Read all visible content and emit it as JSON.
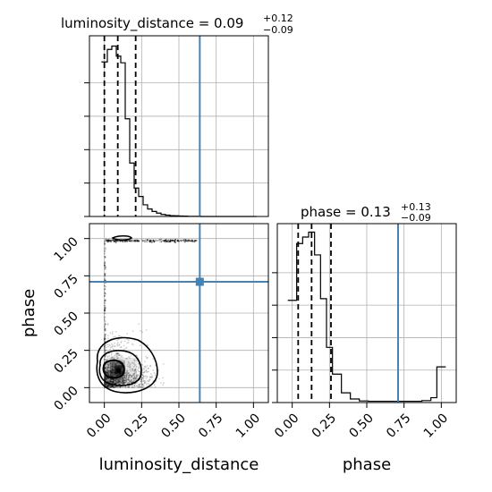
{
  "figure": {
    "x_axis_label": "luminosity_distance",
    "y_axis_label": "phase",
    "phase_axis_label": "phase"
  },
  "titles": {
    "lum": {
      "main": "luminosity_distance = 0.09",
      "sup": "+0.12",
      "sub": "−0.09"
    },
    "phase": {
      "main": "phase = 0.13",
      "sup": "+0.13",
      "sub": "−0.09"
    }
  },
  "tick_labels": {
    "x": [
      "0.00",
      "0.25",
      "0.50",
      "0.75",
      "1.00"
    ],
    "y": [
      "0.00",
      "0.25",
      "0.50",
      "0.75",
      "1.00"
    ]
  },
  "colors": {
    "truth": "#4682b4",
    "grid": "#b0b0b0",
    "hist": "#000000"
  },
  "chart_data": [
    {
      "type": "histogram",
      "panel": "luminosity_distance marginal",
      "bin_edges": [
        -0.02,
        0.02,
        0.05,
        0.08,
        0.11,
        0.14,
        0.17,
        0.2,
        0.23,
        0.26,
        0.29,
        0.32,
        0.35,
        0.38,
        0.41,
        0.44,
        0.47,
        0.5,
        0.53,
        0.56,
        0.59,
        0.62,
        0.65,
        0.68,
        0.71,
        0.74,
        0.77,
        0.8,
        0.83,
        0.86,
        0.89,
        0.92,
        0.95,
        0.98,
        1.02
      ],
      "counts": [
        925,
        1000,
        1020,
        960,
        920,
        585,
        320,
        170,
        120,
        70,
        45,
        30,
        20,
        12,
        8,
        5,
        4,
        3,
        2,
        1,
        1,
        1,
        0,
        0,
        0,
        0,
        0,
        0,
        0,
        0,
        0,
        0,
        0,
        0
      ],
      "quantiles": [
        0.0,
        0.09,
        0.21
      ],
      "truth": 0.64,
      "xlim": [
        -0.1,
        1.1
      ]
    },
    {
      "type": "histogram",
      "panel": "phase marginal",
      "bin_edges": [
        -0.03,
        0.03,
        0.07,
        0.11,
        0.15,
        0.19,
        0.23,
        0.27,
        0.33,
        0.39,
        0.45,
        0.51,
        0.57,
        0.63,
        0.69,
        0.75,
        0.81,
        0.87,
        0.93,
        0.97,
        1.03
      ],
      "counts": [
        630,
        980,
        1020,
        1050,
        910,
        640,
        340,
        175,
        60,
        22,
        10,
        8,
        8,
        8,
        8,
        8,
        8,
        12,
        30,
        220
      ],
      "quantiles": [
        0.04,
        0.13,
        0.26
      ],
      "truth": 0.71,
      "xlim": [
        -0.1,
        1.1
      ]
    },
    {
      "type": "scatter-density",
      "panel": "luminosity_distance vs phase",
      "truth": {
        "x": 0.64,
        "y": 0.71
      },
      "xlim": [
        -0.1,
        1.1
      ],
      "ylim": [
        -0.1,
        1.1
      ]
    }
  ]
}
